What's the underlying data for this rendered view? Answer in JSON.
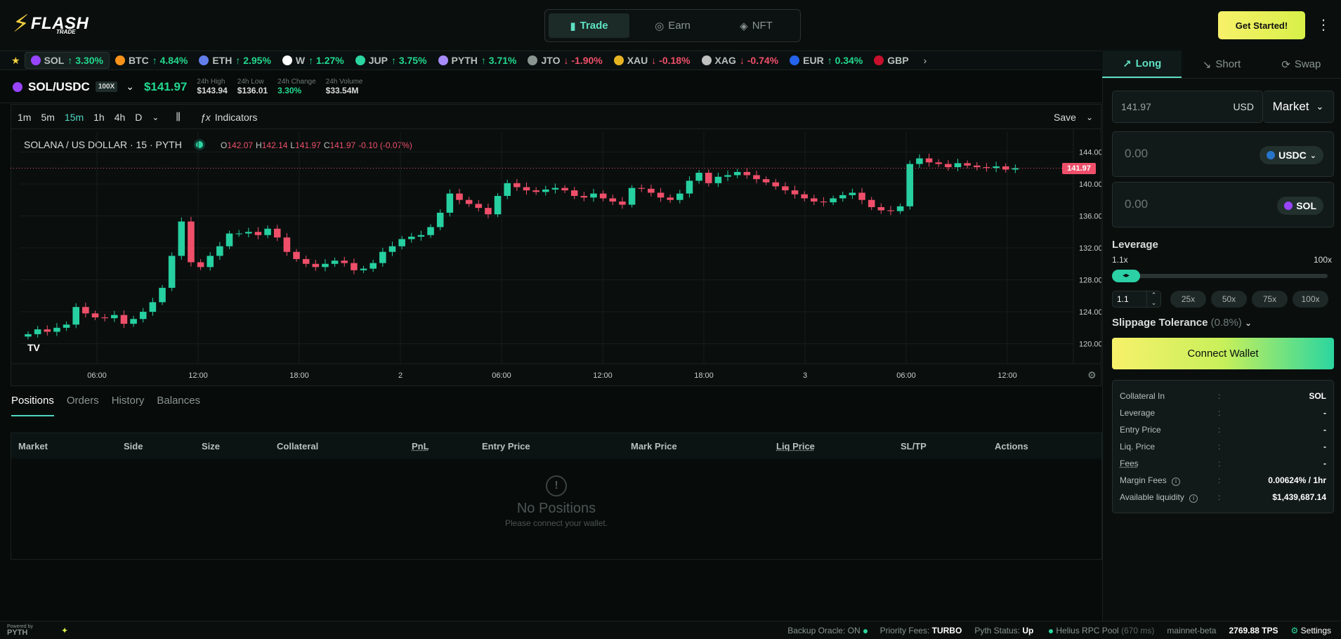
{
  "brand": {
    "name": "FLASH",
    "sub": "TRADE"
  },
  "nav": {
    "tabs": [
      {
        "label": "Trade",
        "icon": "bar-chart-icon"
      },
      {
        "label": "Earn",
        "icon": "coin-icon"
      },
      {
        "label": "NFT",
        "icon": "nft-icon"
      }
    ]
  },
  "header": {
    "cta": "Get Started!"
  },
  "ticker": {
    "items": [
      {
        "symbol": "SOL",
        "change": "↑ 3.30%",
        "dir": "up",
        "color": "#9945ff"
      },
      {
        "symbol": "BTC",
        "change": "↑ 4.84%",
        "dir": "up",
        "color": "#f7931a"
      },
      {
        "symbol": "ETH",
        "change": "↑ 2.95%",
        "dir": "up",
        "color": "#627eea"
      },
      {
        "symbol": "W",
        "change": "↑ 1.27%",
        "dir": "up",
        "color": "#ffffff"
      },
      {
        "symbol": "JUP",
        "change": "↑ 3.75%",
        "dir": "up",
        "color": "#2bd6a0"
      },
      {
        "symbol": "PYTH",
        "change": "↑ 3.71%",
        "dir": "up",
        "color": "#a78bfa"
      },
      {
        "symbol": "JTO",
        "change": "↓ -1.90%",
        "dir": "dn",
        "color": "#8a9592"
      },
      {
        "symbol": "XAU",
        "change": "↓ -0.18%",
        "dir": "dn",
        "color": "#e6b422"
      },
      {
        "symbol": "XAG",
        "change": "↓ -0.74%",
        "dir": "dn",
        "color": "#c0c0c0"
      },
      {
        "symbol": "EUR",
        "change": "↑ 0.34%",
        "dir": "up",
        "color": "#2563eb"
      },
      {
        "symbol": "GBP",
        "change": "",
        "dir": "up",
        "color": "#c8102e"
      }
    ]
  },
  "market": {
    "pair": "SOL/USDC",
    "leverage": "100X",
    "price": "$141.97",
    "stats": [
      {
        "label": "24h High",
        "value": "$143.94"
      },
      {
        "label": "24h Low",
        "value": "$136.01"
      },
      {
        "label": "24h Change",
        "value": "3.30%"
      },
      {
        "label": "24h Volume",
        "value": "$33.54M"
      }
    ]
  },
  "chart_toolbar": {
    "timeframes": [
      "1m",
      "5m",
      "15m",
      "1h",
      "4h",
      "D"
    ],
    "active": "15m",
    "indicators": "Indicators",
    "save": "Save"
  },
  "chart_header": {
    "title": "SOLANA / US DOLLAR · 15 · PYTH",
    "o": "142.07",
    "h": "142.14",
    "l": "141.97",
    "c": "141.97",
    "chg": "-0.10 (-0.07%)",
    "last_price": "141.97"
  },
  "chart_data": {
    "type": "candlestick",
    "title": "SOLANA / US DOLLAR · 15 · PYTH",
    "x_ticks": [
      "06:00",
      "12:00",
      "18:00",
      "2",
      "06:00",
      "12:00",
      "18:00",
      "3",
      "06:00",
      "12:00"
    ],
    "y_ticks": [
      "144.00",
      "140.00",
      "136.00",
      "132.00",
      "128.00",
      "124.00",
      "120.00"
    ],
    "ylim": [
      117.5,
      146.5
    ],
    "close_path": [
      121.2,
      121.8,
      121.5,
      122.0,
      122.4,
      124.6,
      123.8,
      123.3,
      123.2,
      123.6,
      122.5,
      123.1,
      124.0,
      125.2,
      127.0,
      131.0,
      135.3,
      130.2,
      129.6,
      131.0,
      132.2,
      133.8,
      133.8,
      134.0,
      133.6,
      134.4,
      133.3,
      131.5,
      130.6,
      130.0,
      129.6,
      130.0,
      130.4,
      130.1,
      129.2,
      129.4,
      130.1,
      131.5,
      132.2,
      133.1,
      133.4,
      133.6,
      134.6,
      136.4,
      138.8,
      138.0,
      137.5,
      137.0,
      136.2,
      138.5,
      140.1,
      139.6,
      139.2,
      139.0,
      139.3,
      139.5,
      139.2,
      138.5,
      138.3,
      138.8,
      138.2,
      137.8,
      137.4,
      139.5,
      139.4,
      138.9,
      138.3,
      138.0,
      138.8,
      140.4,
      141.4,
      140.1,
      140.9,
      141.1,
      141.5,
      141.1,
      140.6,
      140.2,
      139.7,
      139.2,
      138.7,
      138.2,
      137.8,
      137.7,
      138.2,
      138.6,
      138.9,
      138.0,
      137.1,
      136.7,
      136.6,
      137.2,
      142.5,
      143.2,
      142.7,
      142.5,
      142.1,
      142.6,
      142.3,
      142.1,
      142.0,
      142.2,
      141.8,
      141.97
    ]
  },
  "bottom": {
    "tabs": [
      "Positions",
      "Orders",
      "History",
      "Balances"
    ],
    "columns": [
      "Market",
      "Side",
      "Size",
      "Collateral",
      "PnL",
      "Entry Price",
      "Mark Price",
      "Liq Price",
      "SL/TP",
      "Actions"
    ],
    "empty_title": "No Positions",
    "empty_sub": "Please connect your wallet."
  },
  "trade": {
    "tabs": [
      "Long",
      "Short",
      "Swap"
    ],
    "price_value": "141.97",
    "price_unit": "USD",
    "order_type": "Market",
    "pay_amount": "0.00",
    "pay_token": "USDC",
    "recv_amount": "0.00",
    "recv_token": "SOL",
    "leverage_label": "Leverage",
    "lev_min": "1.1x",
    "lev_max": "100x",
    "lev_input": "1.1",
    "lev_level": 0.0,
    "presets": [
      "25x",
      "50x",
      "75x",
      "100x"
    ],
    "slippage_label": "Slippage Tolerance",
    "slippage_value": "(0.8%)",
    "connect": "Connect Wallet",
    "info": [
      {
        "k": "Collateral In",
        "v": "SOL"
      },
      {
        "k": "Leverage",
        "v": "-"
      },
      {
        "k": "Entry Price",
        "v": "-"
      },
      {
        "k": "Liq. Price",
        "v": "-"
      },
      {
        "k": "Fees",
        "v": "-"
      },
      {
        "k": "Margin Fees",
        "v": "0.00624% / 1hr"
      },
      {
        "k": "Available liquidity",
        "v": "$1,439,687.14"
      }
    ]
  },
  "footer": {
    "powered": "Powered by",
    "pyth": "PYTH",
    "backup": "Backup Oracle: ON",
    "priority_label": "Priority Fees:",
    "priority": "TURBO",
    "pyth_status_label": "Pyth Status:",
    "pyth_status": "Up",
    "rpc": "Helius RPC Pool",
    "rpc_ms": "(670 ms)",
    "network": "mainnet-beta",
    "tps": "2769.88 TPS",
    "settings": "Settings"
  }
}
